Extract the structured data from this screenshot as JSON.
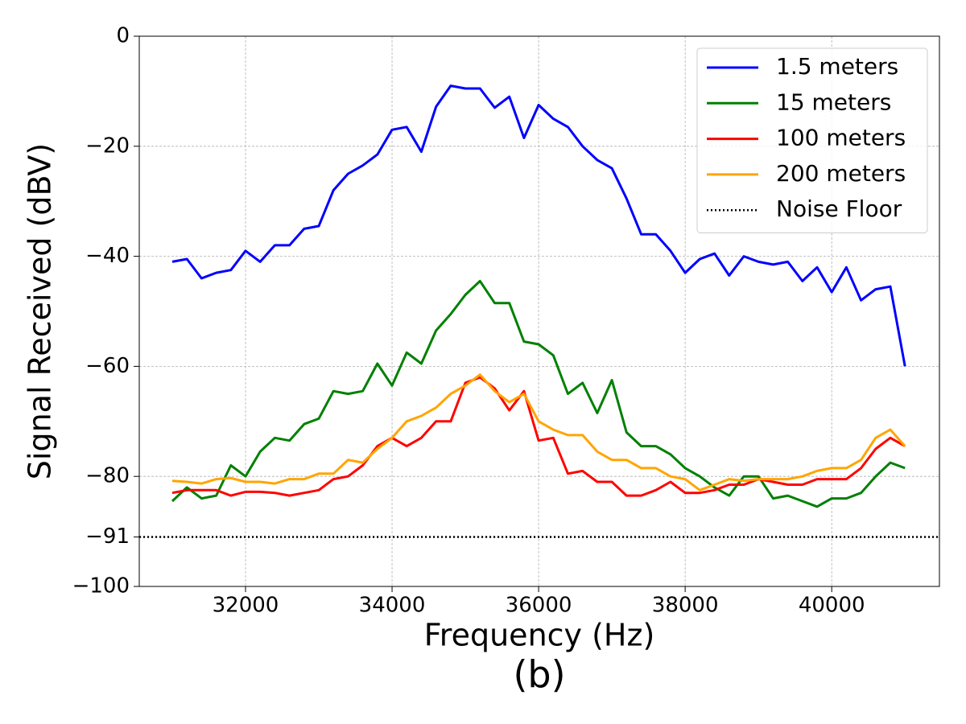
{
  "chart_data": {
    "type": "line",
    "xlabel": "Frequency (Hz)",
    "ylabel": "Signal Received (dBV)",
    "caption": "(b)",
    "x": [
      31000,
      31200,
      31400,
      31600,
      31800,
      32000,
      32200,
      32400,
      32600,
      32800,
      33000,
      33200,
      33400,
      33600,
      33800,
      34000,
      34200,
      34400,
      34600,
      34800,
      35000,
      35200,
      35400,
      35600,
      35800,
      36000,
      36200,
      36400,
      36600,
      36800,
      37000,
      37200,
      37400,
      37600,
      37800,
      38000,
      38200,
      38400,
      38600,
      38800,
      39000,
      39200,
      39400,
      39600,
      39800,
      40000,
      40200,
      40400,
      40600,
      40800,
      41000
    ],
    "series": [
      {
        "name": "1.5 meters",
        "color": "#0000ff",
        "values": [
          -41,
          -40.5,
          -44,
          -43,
          -42.5,
          -39,
          -41,
          -38,
          -38,
          -35,
          -34.5,
          -28,
          -25,
          -23.5,
          -21.5,
          -17,
          -16.5,
          -21,
          -12.8,
          -9,
          -9.5,
          -9.5,
          -13,
          -11,
          -18.5,
          -12.5,
          -15,
          -16.5,
          -20,
          -22.5,
          -24,
          -29.5,
          -36,
          -36,
          -39,
          -43,
          -40.5,
          -39.5,
          -43.5,
          -40,
          -41,
          -41.5,
          -41,
          -44.5,
          -42,
          -46.5,
          -42,
          -48,
          -46,
          -45.5,
          -60
        ]
      },
      {
        "name": "15 meters",
        "color": "#008000",
        "values": [
          -84.5,
          -82,
          -84,
          -83.5,
          -78,
          -80,
          -75.5,
          -73,
          -73.5,
          -70.5,
          -69.5,
          -64.5,
          -65,
          -64.5,
          -59.5,
          -63.5,
          -57.5,
          -59.5,
          -53.5,
          -50.5,
          -47,
          -44.5,
          -48.5,
          -48.5,
          -55.5,
          -56,
          -58,
          -65,
          -63,
          -68.5,
          -62.5,
          -72,
          -74.5,
          -74.5,
          -76,
          -78.5,
          -80,
          -82,
          -83.5,
          -80,
          -80,
          -84,
          -83.5,
          -84.5,
          -85.5,
          -84,
          -84,
          -83,
          -80,
          -77.5,
          -78.5
        ]
      },
      {
        "name": "100 meters",
        "color": "#ff0000",
        "values": [
          -83,
          -82.5,
          -82.5,
          -82.5,
          -83.5,
          -82.8,
          -82.8,
          -83,
          -83.5,
          -83,
          -82.5,
          -80.5,
          -80,
          -78,
          -74.5,
          -73,
          -74.5,
          -73,
          -70,
          -70,
          -63,
          -62,
          -64,
          -68,
          -64.5,
          -73.5,
          -73,
          -79.5,
          -79,
          -81,
          -81,
          -83.5,
          -83.5,
          -82.5,
          -81,
          -83,
          -83,
          -82.5,
          -81.5,
          -81.5,
          -80.5,
          -81,
          -81.5,
          -81.5,
          -80.5,
          -80.5,
          -80.5,
          -78.5,
          -75,
          -73,
          -74.5
        ]
      },
      {
        "name": "200 meters",
        "color": "#ffa500",
        "values": [
          -80.8,
          -81,
          -81.3,
          -80.5,
          -80.3,
          -81,
          -81,
          -81.3,
          -80.5,
          -80.5,
          -79.5,
          -79.5,
          -77,
          -77.5,
          -75,
          -73,
          -70,
          -69,
          -67.5,
          -65,
          -63.5,
          -61.5,
          -64.5,
          -66.5,
          -65,
          -70,
          -71.5,
          -72.5,
          -72.5,
          -75.5,
          -77,
          -77,
          -78.5,
          -78.5,
          -80,
          -80.5,
          -82.5,
          -81.5,
          -80.5,
          -80.8,
          -80.5,
          -80.5,
          -80.5,
          -80,
          -79,
          -78.5,
          -78.5,
          -77,
          -73,
          -71.5,
          -74.5
        ]
      }
    ],
    "noise_floor": {
      "name": "Noise Floor",
      "value": -91,
      "color": "#000000"
    },
    "xlim": [
      30550,
      41470
    ],
    "ylim": [
      -100,
      0
    ],
    "xticks": [
      32000,
      34000,
      36000,
      38000,
      40000
    ],
    "yticks": [
      0,
      {
        "value": -20,
        "label": "−20"
      },
      {
        "value": -40,
        "label": "−40"
      },
      {
        "value": -60,
        "label": "−60"
      },
      {
        "value": -80,
        "label": "−80"
      },
      {
        "value": -91,
        "label": "−91"
      },
      {
        "value": -100,
        "label": "−100"
      }
    ],
    "grid": true,
    "legend": "upper right"
  }
}
